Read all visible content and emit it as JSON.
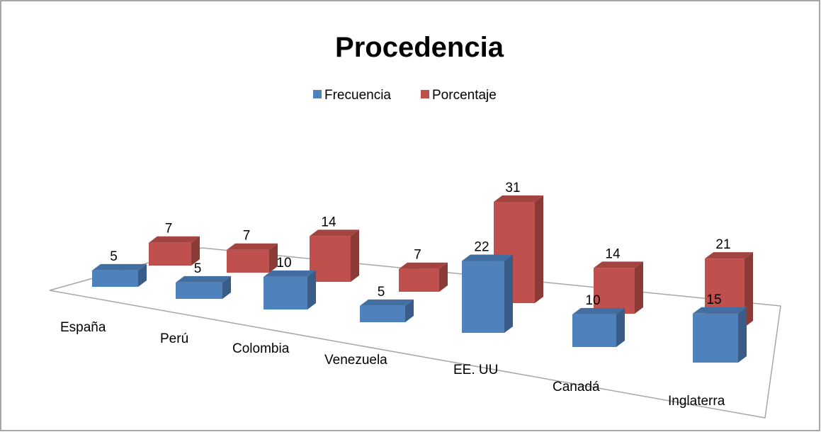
{
  "chart_data": {
    "type": "bar3d",
    "title": "Procedencia",
    "categories": [
      "España",
      "Perú",
      "Colombia",
      "Venezuela",
      "EE. UU",
      "Canadá",
      "Inglaterra"
    ],
    "series": [
      {
        "name": "Frecuencia",
        "color": "#4f81bd",
        "values": [
          5,
          5,
          10,
          5,
          22,
          10,
          15
        ]
      },
      {
        "name": "Porcentaje",
        "color": "#c0504d",
        "values": [
          7,
          7,
          14,
          7,
          31,
          14,
          21
        ]
      }
    ],
    "legend": "top"
  }
}
